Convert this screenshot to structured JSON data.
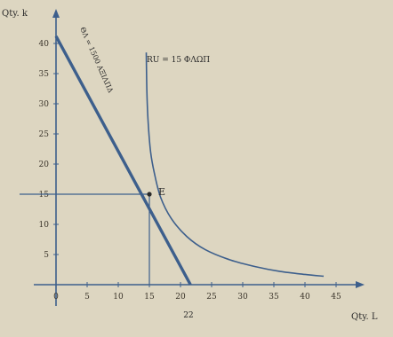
{
  "chart_data": {
    "type": "line",
    "title": "",
    "ylabel": "Qty. k",
    "xlabel": "Qty. L",
    "xlim": [
      0,
      50
    ],
    "ylim": [
      0,
      45
    ],
    "x_ticks": [
      {
        "value": 0,
        "label": "0"
      },
      {
        "value": 5,
        "label": "5"
      },
      {
        "value": 10,
        "label": "10"
      },
      {
        "value": 15,
        "label": "15"
      },
      {
        "value": 20,
        "label": "20"
      },
      {
        "value": 25,
        "label": "25"
      },
      {
        "value": 30,
        "label": "30"
      },
      {
        "value": 35,
        "label": "35"
      },
      {
        "value": 40,
        "label": "40"
      },
      {
        "value": 45,
        "label": "45"
      }
    ],
    "y_ticks": [
      {
        "value": 5,
        "label": "5"
      },
      {
        "value": 10,
        "label": "10"
      },
      {
        "value": 15,
        "label": "15"
      },
      {
        "value": 20,
        "label": "20"
      },
      {
        "value": 25,
        "label": "25"
      },
      {
        "value": 30,
        "label": "30"
      },
      {
        "value": 35,
        "label": "35"
      },
      {
        "value": 40,
        "label": "40"
      }
    ],
    "series": [
      {
        "name": "",
        "kind": "budget-line",
        "x": [
          0,
          21.6
        ],
        "y": [
          41.2,
          0
        ]
      },
      {
        "name": "",
        "kind": "isoquant",
        "x": [
          14.5,
          14.6,
          14.8,
          15.2,
          15.8,
          16.8,
          18.5,
          21,
          24,
          28,
          32,
          36,
          40,
          43
        ],
        "y": [
          38.5,
          32,
          27,
          22,
          18.5,
          14.5,
          11,
          8,
          5.8,
          4.1,
          3,
          2.2,
          1.7,
          1.4
        ]
      }
    ],
    "annotations": {
      "isoquant_label": "RU = 15 ΦΛΩΠ",
      "budget_label": "ΘΛ = 1500 ΑΞΙΛΠΔ",
      "point_label": "E",
      "x_intercept_label": "22",
      "opt_x": 15,
      "opt_y": 15
    }
  }
}
